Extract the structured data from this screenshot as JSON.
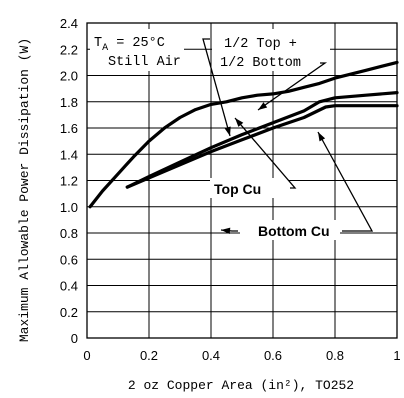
{
  "chart_data": {
    "type": "line",
    "xlabel": "2 oz Copper Area (in²), TO252",
    "ylabel": "Maximum Allowable Power Dissipation (W)",
    "xlim": [
      0,
      1.0
    ],
    "ylim": [
      0,
      2.4
    ],
    "x_ticks": [
      "0",
      "0.2",
      "0.4",
      "0.6",
      "0.8",
      "1"
    ],
    "y_ticks": [
      "0",
      "0.2",
      "0.4",
      "0.6",
      "0.8",
      "1.0",
      "1.2",
      "1.4",
      "1.6",
      "1.8",
      "2.0",
      "2.2",
      "2.4"
    ],
    "grid": true,
    "series": [
      {
        "name": "1/2 Top + 1/2 Bottom",
        "points": [
          [
            0.01,
            1.0
          ],
          [
            0.05,
            1.12
          ],
          [
            0.1,
            1.25
          ],
          [
            0.15,
            1.38
          ],
          [
            0.2,
            1.5
          ],
          [
            0.25,
            1.6
          ],
          [
            0.3,
            1.68
          ],
          [
            0.35,
            1.74
          ],
          [
            0.4,
            1.78
          ],
          [
            0.45,
            1.8
          ],
          [
            0.5,
            1.83
          ],
          [
            0.55,
            1.85
          ],
          [
            0.6,
            1.86
          ],
          [
            0.65,
            1.88
          ],
          [
            0.7,
            1.91
          ],
          [
            0.75,
            1.94
          ],
          [
            0.8,
            1.98
          ],
          [
            0.85,
            2.01
          ],
          [
            0.9,
            2.04
          ],
          [
            0.95,
            2.07
          ],
          [
            1.0,
            2.1
          ]
        ]
      },
      {
        "name": "Top Cu",
        "points": [
          [
            0.13,
            1.15
          ],
          [
            0.2,
            1.23
          ],
          [
            0.3,
            1.34
          ],
          [
            0.4,
            1.45
          ],
          [
            0.5,
            1.55
          ],
          [
            0.6,
            1.64
          ],
          [
            0.7,
            1.73
          ],
          [
            0.75,
            1.8
          ],
          [
            0.8,
            1.83
          ],
          [
            0.9,
            1.85
          ],
          [
            1.0,
            1.87
          ]
        ]
      },
      {
        "name": "Bottom Cu",
        "points": [
          [
            0.13,
            1.15
          ],
          [
            0.2,
            1.22
          ],
          [
            0.3,
            1.32
          ],
          [
            0.4,
            1.42
          ],
          [
            0.5,
            1.51
          ],
          [
            0.6,
            1.6
          ],
          [
            0.7,
            1.68
          ],
          [
            0.77,
            1.76
          ],
          [
            0.8,
            1.77
          ],
          [
            0.9,
            1.77
          ],
          [
            1.0,
            1.77
          ]
        ]
      }
    ],
    "annotations": {
      "ta_main": "T",
      "ta_sub": "A",
      "ta_rest": " = 25°C",
      "still_air": "Still Air",
      "half_top": "1/2 Top +",
      "half_bottom": "1/2 Bottom",
      "top_cu": "Top Cu",
      "bottom_cu": "Bottom Cu"
    }
  }
}
